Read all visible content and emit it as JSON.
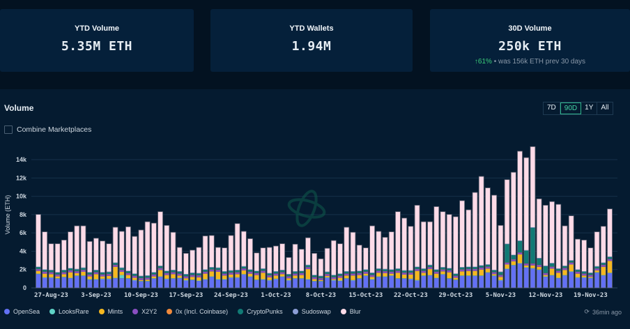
{
  "stats": [
    {
      "label": "YTD Volume",
      "value": "5.35M ETH"
    },
    {
      "label": "YTD Wallets",
      "value": "1.94M"
    },
    {
      "label": "30D Volume",
      "value": "250k ETH",
      "change": "61%",
      "change_direction": "up",
      "comparison": "• was 156k ETH prev 30 days"
    }
  ],
  "panel": {
    "title": "Volume",
    "ranges": [
      "7D",
      "90D",
      "1Y",
      "All"
    ],
    "active_range": "90D",
    "combine_label": "Combine Marketplaces",
    "combine_checked": false,
    "updated": "36min ago",
    "updated_icon": "clock-refresh-icon",
    "watermark_icon": "orbit-logo-icon"
  },
  "chart_data": {
    "type": "bar",
    "stacked": true,
    "ylabel": "Volume (ETH)",
    "ylim": [
      0,
      16000
    ],
    "yticks": [
      "0",
      "2k",
      "4k",
      "6k",
      "8k",
      "10k",
      "12k",
      "14k"
    ],
    "grid": true,
    "legend_position": "bottom",
    "x_start": "2023-08-25",
    "x_end": "2023-11-22",
    "xtick_labels": [
      "27-Aug-23",
      "3-Sep-23",
      "10-Sep-23",
      "17-Sep-23",
      "24-Sep-23",
      "1-Oct-23",
      "8-Oct-23",
      "15-Oct-23",
      "22-Oct-23",
      "29-Oct-23",
      "5-Nov-23",
      "12-Nov-23",
      "19-Nov-23"
    ],
    "unit": "thousand ETH",
    "series": [
      {
        "name": "OpenSea",
        "color": "#6371f4",
        "values": [
          1.5,
          1.1,
          1.1,
          1.0,
          1.15,
          1.05,
          1.3,
          1.3,
          0.9,
          0.9,
          0.95,
          0.95,
          1.05,
          1.05,
          1.0,
          0.8,
          0.7,
          0.7,
          1.0,
          1.2,
          0.95,
          1.0,
          1.05,
          0.8,
          0.85,
          0.75,
          0.9,
          1.2,
          0.9,
          0.9,
          1.1,
          1.1,
          1.45,
          1.2,
          0.85,
          0.9,
          0.8,
          0.95,
          1.2,
          0.8,
          1.0,
          1.0,
          0.9,
          0.7,
          0.7,
          1.1,
          0.8,
          0.75,
          1.0,
          0.8,
          1.0,
          1.3,
          0.9,
          1.2,
          1.2,
          1.3,
          1.0,
          1.0,
          0.95,
          0.8,
          1.3,
          1.35,
          1.05,
          1.45,
          1.0,
          0.85,
          1.3,
          1.3,
          1.3,
          1.3,
          1.65,
          1.3,
          0.8,
          2.05,
          2.45,
          2.65,
          2.2,
          2.1,
          1.95,
          1.2,
          1.35,
          1.05,
          1.35,
          1.75,
          1.1,
          1.1,
          1.05,
          1.65,
          1.35,
          1.6
        ]
      },
      {
        "name": "LooksRare",
        "color": "#5fd3c6",
        "values": [
          0.05,
          0.05,
          0.05,
          0.05,
          0.05,
          0.05,
          0.05,
          0.05,
          0.05,
          0.05,
          0.05,
          0.05,
          0.05,
          0.35,
          0.05,
          0.05,
          0.05,
          0.05,
          0.05,
          0.05,
          0.05,
          0.05,
          0.05,
          0.05,
          0.05,
          0.05,
          0.05,
          0.05,
          0.05,
          0.05,
          0.05,
          0.05,
          0.05,
          0.05,
          0.05,
          0.05,
          0.05,
          0.05,
          0.05,
          0.05,
          0.05,
          0.05,
          0.05,
          0.05,
          0.05,
          0.05,
          0.05,
          0.05,
          0.05,
          0.05,
          0.05,
          0.05,
          0.05,
          0.05,
          0.05,
          0.05,
          0.05,
          0.05,
          0.05,
          0.05,
          0.05,
          0.05,
          0.05,
          0.05,
          0.05,
          0.05,
          0.05,
          0.05,
          0.05,
          0.05,
          0.05,
          0.05,
          0.05,
          0.05,
          0.05,
          0.05,
          0.05,
          0.05,
          0.05,
          0.05,
          0.05,
          0.05,
          0.05,
          0.05,
          0.05,
          0.05,
          0.05,
          0.05,
          0.05,
          0.05
        ]
      },
      {
        "name": "Mints",
        "color": "#f5b820",
        "values": [
          0.3,
          0.4,
          0.35,
          0.2,
          0.3,
          0.6,
          0.25,
          0.4,
          0.3,
          0.55,
          0.25,
          0.3,
          1.2,
          0.35,
          0.35,
          0.25,
          0.1,
          0.15,
          0.2,
          0.7,
          0.4,
          0.45,
          0.25,
          0.2,
          0.3,
          0.35,
          0.6,
          0.55,
          0.8,
          0.4,
          0.3,
          0.35,
          0.4,
          0.3,
          0.5,
          0.7,
          0.3,
          0.35,
          0.25,
          0.2,
          0.3,
          0.35,
          1.1,
          0.2,
          0.1,
          0.15,
          0.1,
          0.3,
          0.3,
          0.5,
          0.35,
          0.2,
          0.25,
          0.4,
          0.35,
          0.2,
          0.6,
          0.4,
          0.45,
          1.0,
          0.3,
          0.65,
          0.45,
          0.3,
          0.65,
          0.2,
          0.45,
          0.5,
          0.5,
          0.65,
          0.4,
          0.15,
          0.35,
          0.45,
          0.4,
          0.95,
          0.2,
          0.3,
          0.3,
          0.15,
          0.7,
          0.55,
          0.55,
          0.75,
          0.4,
          0.2,
          0.1,
          0.2,
          0.9,
          1.3
        ]
      },
      {
        "name": "X2Y2",
        "color": "#8a4fc1",
        "values": [
          0.2,
          0.2,
          0.2,
          0.2,
          0.2,
          0.2,
          0.2,
          0.2,
          0.2,
          0.2,
          0.2,
          0.2,
          0.2,
          0.2,
          0.2,
          0.2,
          0.2,
          0.2,
          0.2,
          0.2,
          0.2,
          0.2,
          0.2,
          0.2,
          0.2,
          0.2,
          0.2,
          0.2,
          0.2,
          0.2,
          0.2,
          0.2,
          0.2,
          0.2,
          0.2,
          0.2,
          0.2,
          0.2,
          0.2,
          0.2,
          0.2,
          0.2,
          0.2,
          0.2,
          0.2,
          0.2,
          0.2,
          0.2,
          0.2,
          0.2,
          0.2,
          0.2,
          0.2,
          0.2,
          0.2,
          0.2,
          0.2,
          0.2,
          0.2,
          0.2,
          0.2,
          0.2,
          0.2,
          0.2,
          0.2,
          0.2,
          0.2,
          0.2,
          0.2,
          0.2,
          0.2,
          0.2,
          0.2,
          0.2,
          0.2,
          0.2,
          0.2,
          0.2,
          0.2,
          0.2,
          0.2,
          0.2,
          0.2,
          0.2,
          0.2,
          0.2,
          0.2,
          0.2,
          0.2,
          0.2
        ]
      },
      {
        "name": "0x (Incl. Coinbase)",
        "color": "#f08a3c",
        "values": [
          0.02,
          0.02,
          0.02,
          0.02,
          0.02,
          0.02,
          0.02,
          0.02,
          0.02,
          0.02,
          0.02,
          0.02,
          0.02,
          0.02,
          0.02,
          0.02,
          0.02,
          0.02,
          0.02,
          0.02,
          0.02,
          0.02,
          0.02,
          0.02,
          0.02,
          0.02,
          0.02,
          0.02,
          0.02,
          0.02,
          0.02,
          0.02,
          0.02,
          0.02,
          0.02,
          0.02,
          0.02,
          0.02,
          0.02,
          0.02,
          0.02,
          0.02,
          0.02,
          0.02,
          0.02,
          0.02,
          0.02,
          0.02,
          0.02,
          0.02,
          0.02,
          0.02,
          0.02,
          0.02,
          0.02,
          0.02,
          0.02,
          0.02,
          0.02,
          0.02,
          0.02,
          0.02,
          0.02,
          0.02,
          0.02,
          0.02,
          0.02,
          0.02,
          0.02,
          0.02,
          0.02,
          0.02,
          0.02,
          0.02,
          0.02,
          0.02,
          0.02,
          0.02,
          0.02,
          0.02,
          0.02,
          0.02,
          0.02,
          0.02,
          0.02,
          0.02,
          0.02,
          0.02,
          0.02,
          0.02
        ]
      },
      {
        "name": "CryptoPunks",
        "color": "#117a75",
        "values": [
          0.2,
          0.2,
          0.2,
          0.2,
          0.2,
          0.2,
          0.2,
          0.2,
          0.2,
          0.2,
          0.2,
          0.2,
          0.2,
          0.2,
          0.2,
          0.2,
          0.2,
          0.2,
          0.2,
          0.2,
          0.2,
          0.2,
          0.2,
          0.2,
          0.2,
          0.2,
          0.2,
          0.2,
          0.2,
          0.2,
          0.2,
          0.2,
          0.2,
          0.2,
          0.2,
          0.2,
          0.2,
          0.2,
          0.2,
          0.2,
          0.2,
          0.2,
          0.2,
          0.2,
          0.2,
          0.2,
          0.2,
          0.2,
          0.2,
          0.2,
          0.2,
          0.2,
          0.2,
          0.2,
          0.2,
          0.2,
          0.2,
          0.2,
          0.2,
          0.2,
          0.2,
          0.2,
          0.2,
          0.2,
          0.2,
          0.2,
          0.2,
          0.2,
          0.2,
          0.2,
          0.2,
          0.2,
          0.3,
          2.0,
          0.45,
          1.25,
          1.4,
          3.9,
          0.7,
          0.75,
          0.35,
          0.2,
          0.2,
          0.2,
          0.2,
          0.2,
          0.2,
          0.2,
          0.2,
          0.2
        ]
      },
      {
        "name": "Sudoswap",
        "color": "#8c9ed6",
        "values": [
          0.05,
          0.05,
          0.05,
          0.05,
          0.05,
          0.05,
          0.05,
          0.05,
          0.05,
          0.05,
          0.05,
          0.05,
          0.05,
          0.05,
          0.05,
          0.05,
          0.05,
          0.05,
          0.05,
          0.05,
          0.05,
          0.05,
          0.05,
          0.05,
          0.05,
          0.05,
          0.05,
          0.05,
          0.05,
          0.05,
          0.05,
          0.05,
          0.05,
          0.05,
          0.05,
          0.05,
          0.05,
          0.05,
          0.05,
          0.05,
          0.05,
          0.05,
          0.05,
          0.05,
          0.05,
          0.05,
          0.05,
          0.05,
          0.05,
          0.05,
          0.05,
          0.05,
          0.05,
          0.05,
          0.05,
          0.05,
          0.05,
          0.05,
          0.05,
          0.05,
          0.05,
          0.05,
          0.05,
          0.05,
          0.05,
          0.05,
          0.05,
          0.05,
          0.05,
          0.05,
          0.05,
          0.05,
          0.05,
          0.05,
          0.05,
          0.05,
          0.05,
          0.05,
          0.05,
          0.05,
          0.05,
          0.05,
          0.05,
          0.05,
          0.05,
          0.05,
          0.05,
          0.05,
          0.05,
          0.05
        ]
      },
      {
        "name": "Blur",
        "color": "#fddbe8",
        "values": [
          5.7,
          4.1,
          2.85,
          3.1,
          3.25,
          3.95,
          4.7,
          4.55,
          3.35,
          3.45,
          3.4,
          3.05,
          3.85,
          3.95,
          4.8,
          4.05,
          5.0,
          5.85,
          5.35,
          5.9,
          4.95,
          4.1,
          2.6,
          2.25,
          2.45,
          2.8,
          3.65,
          3.45,
          2.2,
          2.55,
          3.8,
          5.05,
          3.8,
          3.35,
          1.95,
          2.25,
          2.8,
          2.75,
          2.85,
          1.8,
          2.95,
          2.35,
          2.95,
          2.35,
          1.85,
          2.55,
          3.75,
          3.25,
          4.8,
          4.25,
          2.8,
          2.35,
          5.1,
          4.05,
          3.45,
          4.1,
          6.2,
          5.7,
          4.8,
          6.7,
          5.1,
          4.7,
          6.85,
          6.05,
          5.85,
          6.2,
          7.25,
          6.2,
          8.1,
          9.7,
          8.35,
          8.15,
          5.05,
          7.0,
          9.0,
          9.75,
          10.1,
          8.8,
          6.45,
          6.6,
          6.7,
          7.0,
          4.35,
          4.85,
          3.3,
          3.4,
          2.7,
          3.75,
          3.95,
          5.2
        ]
      }
    ]
  }
}
